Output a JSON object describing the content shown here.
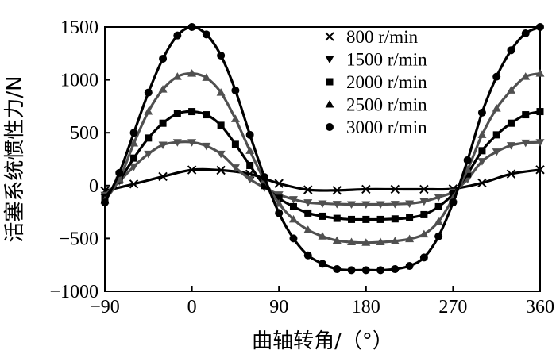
{
  "chart_data": {
    "type": "line",
    "xlabel": "曲轴转角/（°）",
    "ylabel": "活塞系统惯性力/N",
    "xlim": [
      -90,
      360
    ],
    "ylim": [
      -1000,
      1500
    ],
    "xticks": [
      -90,
      0,
      90,
      180,
      270,
      360
    ],
    "yticks": [
      -1000,
      -500,
      0,
      500,
      1000,
      1500
    ],
    "xtick_labels": [
      "−90",
      "0",
      "90",
      "180",
      "270",
      "360"
    ],
    "ytick_labels": [
      "−1000",
      "−500",
      "0",
      "500",
      "1000",
      "1500"
    ],
    "grid": false,
    "legend_position": "top-right",
    "series": [
      {
        "name": "800 r/min",
        "marker": "x",
        "color": "#000000",
        "x": [
          -90,
          -60,
          -30,
          0,
          30,
          60,
          90,
          120,
          150,
          180,
          210,
          240,
          270,
          300,
          330,
          360
        ],
        "y": [
          -50,
          15,
          85,
          148,
          145,
          110,
          20,
          -40,
          -45,
          -35,
          -35,
          -35,
          -30,
          25,
          110,
          150
        ]
      },
      {
        "name": "1500 r/min",
        "marker": "triangle-down",
        "color": "#505050",
        "x": [
          -90,
          -75,
          -60,
          -45,
          -30,
          -15,
          0,
          15,
          30,
          45,
          60,
          75,
          90,
          105,
          120,
          135,
          150,
          165,
          180,
          195,
          210,
          225,
          240,
          255,
          270,
          285,
          300,
          315,
          330,
          345,
          360
        ],
        "y": [
          -90,
          40,
          180,
          300,
          385,
          410,
          410,
          375,
          300,
          170,
          60,
          -20,
          -85,
          -130,
          -160,
          -170,
          -175,
          -178,
          -178,
          -178,
          -175,
          -170,
          -150,
          -110,
          -60,
          60,
          230,
          320,
          380,
          405,
          410
        ]
      },
      {
        "name": "2000 r/min",
        "marker": "square",
        "color": "#000000",
        "x": [
          -90,
          -75,
          -60,
          -45,
          -30,
          -15,
          0,
          15,
          30,
          45,
          60,
          75,
          90,
          105,
          120,
          135,
          150,
          165,
          180,
          195,
          210,
          225,
          240,
          255,
          270,
          285,
          300,
          315,
          330,
          345,
          360
        ],
        "y": [
          -110,
          50,
          260,
          450,
          590,
          680,
          700,
          670,
          570,
          390,
          190,
          0,
          -120,
          -200,
          -260,
          -290,
          -310,
          -320,
          -320,
          -320,
          -315,
          -305,
          -275,
          -200,
          -80,
          110,
          330,
          480,
          590,
          670,
          700
        ]
      },
      {
        "name": "2500 r/min",
        "marker": "triangle-up",
        "color": "#505050",
        "x": [
          -90,
          -75,
          -60,
          -45,
          -30,
          -15,
          0,
          15,
          30,
          45,
          60,
          75,
          90,
          105,
          120,
          135,
          150,
          165,
          180,
          195,
          210,
          225,
          240,
          255,
          270,
          285,
          300,
          315,
          330,
          345,
          360
        ],
        "y": [
          -140,
          60,
          400,
          700,
          910,
          1030,
          1060,
          1020,
          880,
          630,
          330,
          50,
          -170,
          -320,
          -420,
          -480,
          -520,
          -535,
          -540,
          -535,
          -525,
          -505,
          -460,
          -340,
          -120,
          150,
          480,
          730,
          900,
          1030,
          1060
        ]
      },
      {
        "name": "3000 r/min",
        "marker": "circle",
        "color": "#000000",
        "x": [
          -90,
          -75,
          -60,
          -45,
          -30,
          -15,
          0,
          15,
          30,
          45,
          60,
          75,
          90,
          105,
          120,
          135,
          150,
          165,
          180,
          195,
          210,
          225,
          240,
          255,
          270,
          285,
          300,
          315,
          330,
          345,
          360
        ],
        "y": [
          -160,
          120,
          500,
          880,
          1200,
          1420,
          1500,
          1430,
          1230,
          900,
          480,
          80,
          -260,
          -500,
          -660,
          -740,
          -790,
          -800,
          -800,
          -800,
          -790,
          -760,
          -680,
          -480,
          -160,
          240,
          690,
          1030,
          1280,
          1440,
          1500
        ]
      }
    ]
  }
}
